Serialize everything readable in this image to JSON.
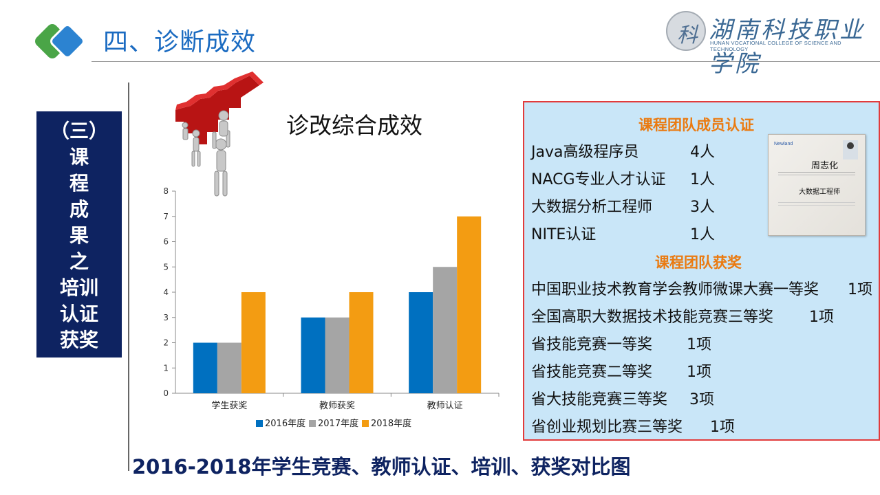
{
  "header": {
    "title": "四、诊断成效",
    "logo_cn": "湖南科技职业学院",
    "logo_en": "HUNAN VOCATIONAL COLLEGE OF SCIENCE AND TECHNOLOGY",
    "logo_mark": "科"
  },
  "side_label": "（三）\n课\n程\n成\n果\n之\n培训\n认证\n获奖",
  "chart_heading": "诊改综合成效",
  "chart_data": {
    "type": "bar",
    "categories": [
      "学生获奖",
      "教师获奖",
      "教师认证"
    ],
    "series": [
      {
        "name": "2016年度",
        "values": [
          2,
          3,
          4
        ],
        "color": "#0070c0"
      },
      {
        "name": "2017年度",
        "values": [
          2,
          3,
          5
        ],
        "color": "#a5a5a5"
      },
      {
        "name": "2018年度",
        "values": [
          4,
          4,
          7
        ],
        "color": "#f39c12"
      }
    ],
    "ylim": [
      0,
      8
    ],
    "yticks": [
      "0",
      "1",
      "2",
      "3",
      "4",
      "5",
      "6",
      "7",
      "8"
    ],
    "legend": "bottom",
    "grid": false
  },
  "panel": {
    "cert_heading": "课程团队成员认证",
    "certs": [
      {
        "label": "Java高级程序员",
        "count": "4人"
      },
      {
        "label": "NACG专业人才认证",
        "count": "1人"
      },
      {
        "label": "大数据分析工程师",
        "count": "3人"
      },
      {
        "label": "NITE认证",
        "count": "1人"
      }
    ],
    "award_heading": "课程团队获奖",
    "awards": [
      {
        "label": "中国职业技术教育学会教师微课大赛一等奖",
        "count": "1项"
      },
      {
        "label": "全国高职大数据技术技能竞赛三等奖",
        "count": "1项"
      },
      {
        "label": "省技能竞赛一等奖",
        "count": "1项"
      },
      {
        "label": "省技能竞赛二等奖",
        "count": "1项"
      },
      {
        "label": "省大技能竞赛三等奖",
        "count": "3项"
      },
      {
        "label": "省创业规划比赛三等奖",
        "count": "1项"
      }
    ],
    "certificate": {
      "name": "周志化",
      "role": "大数据工程师",
      "brand": "Newland"
    }
  },
  "footer": "2016-2018年学生竞赛、教师认证、培训、获奖对比图"
}
